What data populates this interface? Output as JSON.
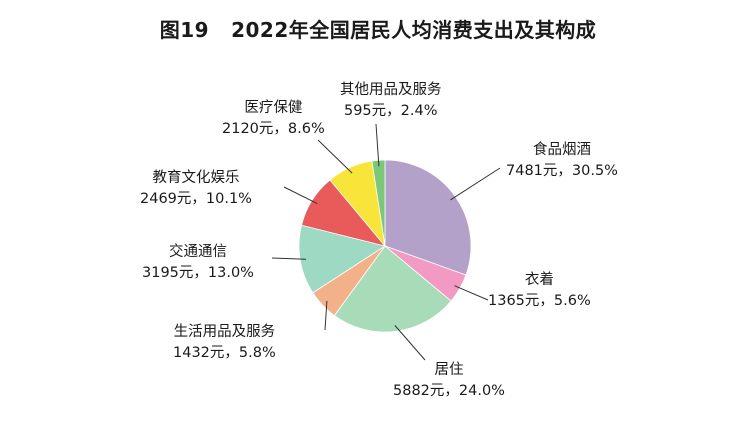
{
  "figure": {
    "number": "图19",
    "title": "2022年全国居民人均消费支出及其构成"
  },
  "chart_data": {
    "type": "pie",
    "title": "2022年全国居民人均消费支出及其构成",
    "unit": "元",
    "slices": [
      {
        "name": "食品烟酒",
        "value": 7481,
        "percent": 30.5,
        "value_label": "7481元，30.5%",
        "color": "#b3a1c9"
      },
      {
        "name": "衣着",
        "value": 1365,
        "percent": 5.6,
        "value_label": "1365元，5.6%",
        "color": "#f29ac4"
      },
      {
        "name": "居住",
        "value": 5882,
        "percent": 24.0,
        "value_label": "5882元，24.0%",
        "color": "#a8dcb8"
      },
      {
        "name": "生活用品及服务",
        "value": 1432,
        "percent": 5.8,
        "value_label": "1432元，5.8%",
        "color": "#f3b18a"
      },
      {
        "name": "交通通信",
        "value": 3195,
        "percent": 13.0,
        "value_label": "3195元，13.0%",
        "color": "#9ed9c3"
      },
      {
        "name": "教育文化娱乐",
        "value": 2469,
        "percent": 10.1,
        "value_label": "2469元，10.1%",
        "color": "#e95b5b"
      },
      {
        "name": "医疗保健",
        "value": 2120,
        "percent": 8.6,
        "value_label": "2120元，8.6%",
        "color": "#f7e539"
      },
      {
        "name": "其他用品及服务",
        "value": 595,
        "percent": 2.4,
        "value_label": "595元，2.4%",
        "color": "#7cc77a"
      }
    ]
  }
}
